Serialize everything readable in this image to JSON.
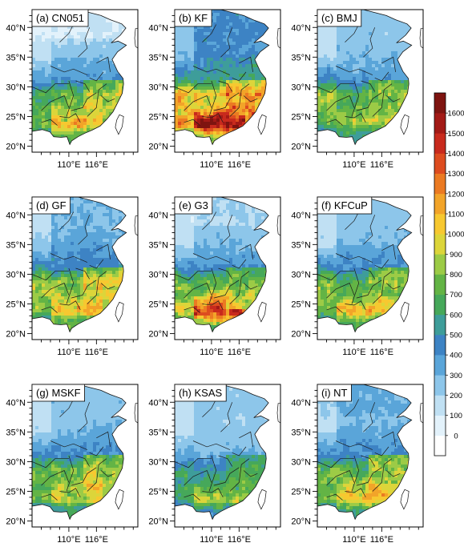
{
  "chart_data": {
    "type": "heatmap",
    "panels": [
      {
        "id": "a",
        "label": "(a) CN051",
        "field": {
          "north": 100,
          "central": 780,
          "south": 1050,
          "southwest": 560,
          "east": 1120,
          "coast": 780
        }
      },
      {
        "id": "b",
        "label": "(b) KF",
        "field": {
          "north": 420,
          "central": 1050,
          "south": 1480,
          "southwest": 1150,
          "east": 1350,
          "coast": 1150
        }
      },
      {
        "id": "c",
        "label": "(c) BMJ",
        "field": {
          "north": 250,
          "central": 720,
          "south": 820,
          "southwest": 1100,
          "east": 1020,
          "coast": 760
        }
      },
      {
        "id": "d",
        "label": "(d) GF",
        "field": {
          "north": 300,
          "central": 870,
          "south": 940,
          "southwest": 1020,
          "east": 1180,
          "coast": 880
        }
      },
      {
        "id": "e",
        "label": "(e) G3",
        "field": {
          "north": 200,
          "central": 760,
          "south": 1380,
          "southwest": 820,
          "east": 880,
          "coast": 820
        }
      },
      {
        "id": "f",
        "label": "(f) KFCuP",
        "field": {
          "north": 250,
          "central": 780,
          "south": 1020,
          "southwest": 960,
          "east": 960,
          "coast": 820
        }
      },
      {
        "id": "g",
        "label": "(g) MSKF",
        "field": {
          "north": 250,
          "central": 760,
          "south": 860,
          "southwest": 880,
          "east": 1080,
          "coast": 760
        }
      },
      {
        "id": "h",
        "label": "(h) KSAS",
        "field": {
          "north": 230,
          "central": 580,
          "south": 820,
          "southwest": 700,
          "east": 780,
          "coast": 640
        }
      },
      {
        "id": "i",
        "label": "(i) NT",
        "field": {
          "north": 320,
          "central": 760,
          "south": 980,
          "southwest": 860,
          "east": 1120,
          "coast": 800
        }
      }
    ],
    "x_ticks": [
      "110°E",
      "116°E"
    ],
    "x_tick_values": [
      110,
      116
    ],
    "y_ticks": [
      "20°N",
      "25°N",
      "30°N",
      "35°N",
      "40°N"
    ],
    "y_tick_values": [
      20,
      25,
      30,
      35,
      40
    ],
    "xlim": [
      102,
      125
    ],
    "ylim": [
      19,
      43
    ],
    "colorbar": {
      "levels": [
        0,
        100,
        200,
        300,
        400,
        500,
        600,
        700,
        800,
        900,
        1000,
        1100,
        1200,
        1300,
        1400,
        1500,
        1600
      ],
      "labels": [
        "0",
        "100",
        "200",
        "300",
        "400",
        "500",
        "600",
        "700",
        "800",
        "900",
        "1000",
        "1100",
        "1200",
        "1300",
        "1400",
        "1500",
        "1600"
      ],
      "colors": [
        "#ffffff",
        "#e3f2fb",
        "#c0e0f3",
        "#8dc6ea",
        "#5aa5d9",
        "#3d83c4",
        "#3e9d9a",
        "#46a85a",
        "#63b445",
        "#9ccb46",
        "#dcd53a",
        "#f7c830",
        "#f2a429",
        "#eb7a22",
        "#dd4c1f",
        "#c82a1d",
        "#a31a16",
        "#7e1410"
      ]
    },
    "grid": false,
    "legend": "right"
  }
}
